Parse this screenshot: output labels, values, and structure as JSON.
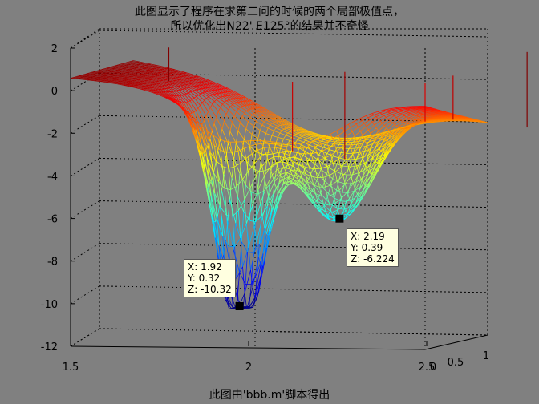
{
  "chart_data": {
    "type": "surface",
    "title_lines": [
      "此图显示了程序在求第二问的时候的两个局部极值点，",
      "所以优化出N22' E125°的结果并不奇怪"
    ],
    "xlabel": "此图由'bbb.m'脚本得出",
    "x_ticks": [
      "1.5",
      "2",
      "2.5"
    ],
    "y_ticks": [
      "0",
      "0.5",
      "1"
    ],
    "z_ticks": [
      "2",
      "0",
      "-2",
      "-4",
      "-6",
      "-8",
      "-10",
      "-12"
    ],
    "zlim": [
      -12,
      2
    ],
    "datatips": [
      {
        "X": "1.92",
        "Y": "0.32",
        "Z": "-10.32"
      },
      {
        "X": "2.19",
        "Y": "0.39",
        "Z": "-6.224"
      }
    ],
    "colormap": "jet",
    "grid": true
  },
  "labels": {
    "x": "X: ",
    "y": "Y: ",
    "z": "Z: "
  }
}
